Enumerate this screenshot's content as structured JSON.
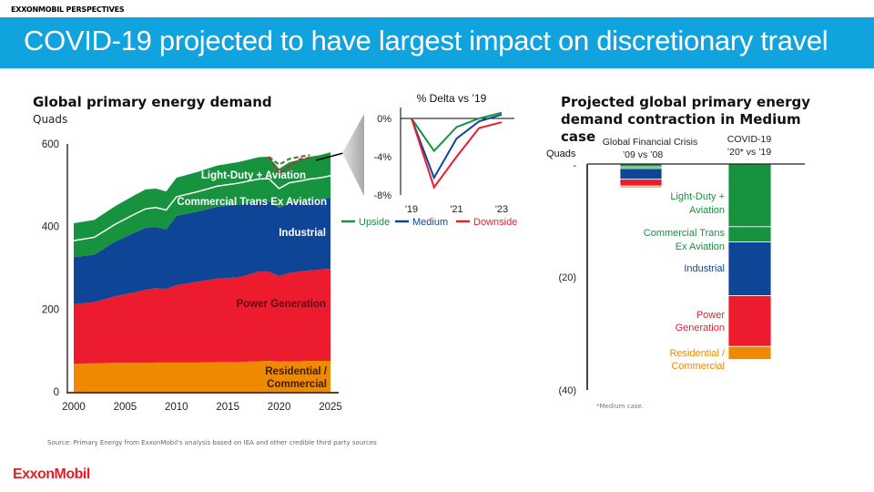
{
  "header": {
    "kicker": "EXXONMOBIL PERSPECTIVES",
    "title": "COVID-19 projected to have largest impact on discretionary travel",
    "banner_color": "#10a3de"
  },
  "footer": {
    "source": "Source: Primary Energy from ExxonMobil's analysis based on IEA and other credible third party sources",
    "logo": "ExxonMobil",
    "footnote": "*Medium case."
  },
  "colors": {
    "light_duty": "#17923f",
    "commercial_trans": "#17923f",
    "industrial": "#0e4597",
    "power": "#ec1c2e",
    "residential": "#ef8a00",
    "upside": "#17923f",
    "medium": "#0e4597",
    "downside": "#ec1c2e"
  },
  "chart_data": [
    {
      "id": "demand",
      "type": "area",
      "title": "Global primary energy demand",
      "ylabel": "Quads",
      "ylim": [
        0,
        600
      ],
      "yticks": [
        0,
        200,
        400,
        600
      ],
      "xticks": [
        2000,
        2005,
        2010,
        2015,
        2020,
        2025
      ],
      "x": [
        2000,
        2002,
        2004,
        2006,
        2007,
        2008,
        2009,
        2010,
        2012,
        2014,
        2016,
        2017,
        2018,
        2019,
        2020,
        2021,
        2022,
        2023,
        2024,
        2025
      ],
      "stacked": true,
      "series": [
        {
          "name": "Residential / Commercial",
          "key": "residential",
          "values": [
            68,
            69,
            70,
            70,
            70,
            71,
            71,
            71,
            71,
            72,
            72,
            73,
            74,
            75,
            73,
            74,
            74,
            75,
            75,
            75
          ]
        },
        {
          "name": "Power Generation",
          "key": "power",
          "values": [
            144,
            148,
            161,
            171,
            177,
            180,
            178,
            187,
            195,
            202,
            205,
            210,
            217,
            216,
            207,
            214,
            217,
            219,
            221,
            223
          ]
        },
        {
          "name": "Industrial",
          "key": "industrial",
          "values": [
            114,
            115,
            132,
            145,
            150,
            148,
            144,
            168,
            170,
            174,
            176,
            174,
            170,
            170,
            166,
            168,
            168,
            169,
            170,
            172
          ]
        },
        {
          "name": "Commercial Trans Ex Aviation",
          "key": "commercial_trans",
          "values": [
            40,
            42,
            42,
            45,
            46,
            47,
            47,
            46,
            48,
            50,
            52,
            53,
            54,
            55,
            46,
            50,
            51,
            52,
            52,
            53
          ]
        },
        {
          "name": "Light-Duty + Aviation",
          "key": "light_duty",
          "values": [
            42,
            42,
            44,
            46,
            47,
            46,
            45,
            46,
            48,
            50,
            51,
            52,
            53,
            53,
            48,
            50,
            52,
            54,
            55,
            57
          ]
        }
      ],
      "scenario_overlay": {
        "x": [
          2019,
          2020,
          2021,
          2022,
          2023
        ],
        "upside": [
          569,
          550,
          564,
          569,
          573
        ],
        "downside": [
          569,
          528,
          546,
          563,
          567
        ]
      }
    },
    {
      "id": "delta",
      "type": "line",
      "title": "% Delta vs ’19",
      "ylim": [
        -8,
        1
      ],
      "yticks": [
        0,
        -4,
        -8
      ],
      "ytick_labels": [
        "0%",
        "-4%",
        "-8%"
      ],
      "x": [
        2019,
        2020,
        2021,
        2022,
        2023
      ],
      "xtick_labels": [
        "'19",
        "'21",
        "'23"
      ],
      "series": [
        {
          "name": "Upside",
          "key": "upside",
          "values": [
            0,
            -3.4,
            -0.9,
            0.0,
            0.6
          ]
        },
        {
          "name": "Medium",
          "key": "medium",
          "values": [
            0,
            -6.2,
            -2.1,
            -0.3,
            0.4
          ]
        },
        {
          "name": "Downside",
          "key": "downside",
          "values": [
            0,
            -7.2,
            -4.0,
            -1.0,
            -0.4
          ]
        }
      ]
    },
    {
      "id": "contraction",
      "type": "bar",
      "title": "Projected global primary energy demand contraction in Medium case",
      "ylabel": "Quads",
      "ylim": [
        -40,
        0
      ],
      "yticks": [
        0,
        -20,
        -40
      ],
      "ytick_labels": [
        "-",
        "(20)",
        "(40)"
      ],
      "stacked": true,
      "categories": [
        "Global Financial Crisis\n’09 vs ’08",
        "COVID-19\n’20* vs ’19"
      ],
      "series": [
        {
          "name": "Light-Duty + Aviation",
          "key": "light_duty",
          "values": [
            -0.5,
            -11.1
          ]
        },
        {
          "name": "Commercial Trans Ex Aviation",
          "key": "commercial_trans",
          "values": [
            -0.3,
            -2.7
          ]
        },
        {
          "name": "Industrial",
          "key": "industrial",
          "values": [
            -1.9,
            -9.5
          ]
        },
        {
          "name": "Power Generation",
          "key": "power",
          "values": [
            -1.2,
            -9.0
          ]
        },
        {
          "name": "Residential / Commercial",
          "key": "residential",
          "values": [
            -0.3,
            -2.3
          ]
        }
      ]
    }
  ],
  "labels": {
    "main_series": {
      "light_duty": "Light-Duty + Aviation",
      "commercial_trans": "Commercial Trans Ex Aviation",
      "industrial": "Industrial",
      "power": "Power Generation",
      "residential_1": "Residential /",
      "residential_2": "Commercial"
    },
    "bar_series": {
      "light_duty_1": "Light-Duty +",
      "light_duty_2": "Aviation",
      "commercial_trans_1": "Commercial Trans",
      "commercial_trans_2": "Ex  Aviation",
      "industrial": "Industrial",
      "power_1": "Power",
      "power_2": "Generation",
      "residential_1": "Residential /",
      "residential_2": "Commercial"
    },
    "bar_categories": {
      "gfc_1": "Global Financial Crisis",
      "gfc_2": "’09 vs ’08",
      "covid_1": "COVID-19",
      "covid_2": "’20* vs ’19"
    },
    "legend": {
      "upside": "Upside",
      "medium": "Medium",
      "downside": "Downside"
    }
  }
}
